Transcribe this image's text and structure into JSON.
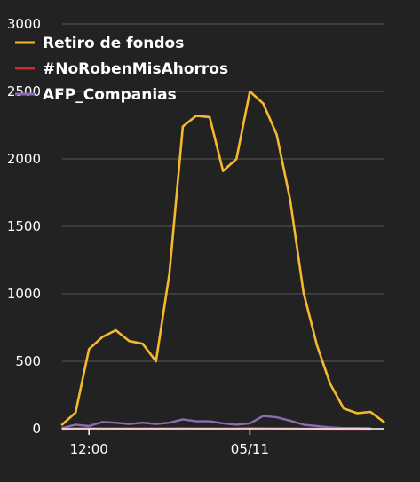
{
  "chart_data": {
    "type": "line",
    "title": "",
    "xlabel": "",
    "ylabel": "",
    "ylim": [
      0,
      3000
    ],
    "yticks": [
      0,
      500,
      1000,
      1500,
      2000,
      2500,
      3000
    ],
    "ytick_labels": [
      "0",
      "500",
      "1000",
      "1500",
      "2000",
      "2500",
      "3000"
    ],
    "xtick_labels": [
      {
        "label": "12:00",
        "index": 2
      },
      {
        "label": "05/11",
        "index": 14
      }
    ],
    "grid": true,
    "legend_placement": "top-left",
    "x_count": 28,
    "series": [
      {
        "name": "Retiro de fondos",
        "color": "#f5b82e",
        "values": [
          30,
          120,
          590,
          680,
          730,
          650,
          630,
          500,
          1150,
          2240,
          2320,
          2310,
          1910,
          2000,
          2500,
          2410,
          2180,
          1700,
          1010,
          620,
          330,
          150,
          115,
          125,
          50
        ]
      },
      {
        "name": "#NoRobenMisAhorros",
        "color": "#d62728",
        "values": [
          0,
          3,
          5,
          4,
          3,
          3,
          4,
          3,
          4,
          5,
          4,
          3,
          3,
          4,
          6,
          5,
          4,
          3,
          2,
          1,
          0,
          0,
          0,
          0
        ]
      },
      {
        "name": "AFP_Companias",
        "color": "#8c6bb1",
        "values": [
          5,
          30,
          20,
          50,
          45,
          35,
          45,
          35,
          45,
          70,
          55,
          55,
          40,
          30,
          40,
          95,
          85,
          60,
          30,
          20,
          10,
          5,
          5,
          3
        ]
      }
    ]
  }
}
